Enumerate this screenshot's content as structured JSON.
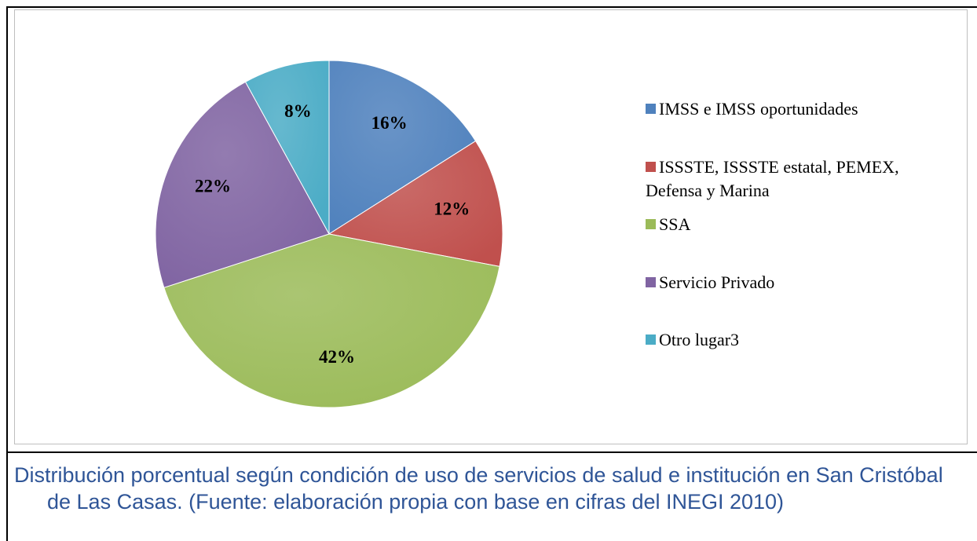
{
  "chart_data": {
    "type": "pie",
    "categories": [
      "IMSS e IMSS oportunidades",
      "ISSSTE, ISSSTE estatal, PEMEX, Defensa y Marina",
      "SSA",
      "Servicio Privado",
      "Otro lugar3"
    ],
    "values": [
      16,
      12,
      42,
      22,
      8
    ],
    "value_labels": [
      "16%",
      "12%",
      "42%",
      "22%",
      "8%"
    ],
    "colors": [
      "#4f81bd",
      "#c0504d",
      "#9bbb59",
      "#8064a2",
      "#4bacc6"
    ],
    "legend": "right"
  },
  "caption": "Distribución porcentual según condición de uso de servicios de salud e institución en San Cristóbal de Las Casas. (Fuente: elaboración propia con base en cifras del INEGI 2010)"
}
